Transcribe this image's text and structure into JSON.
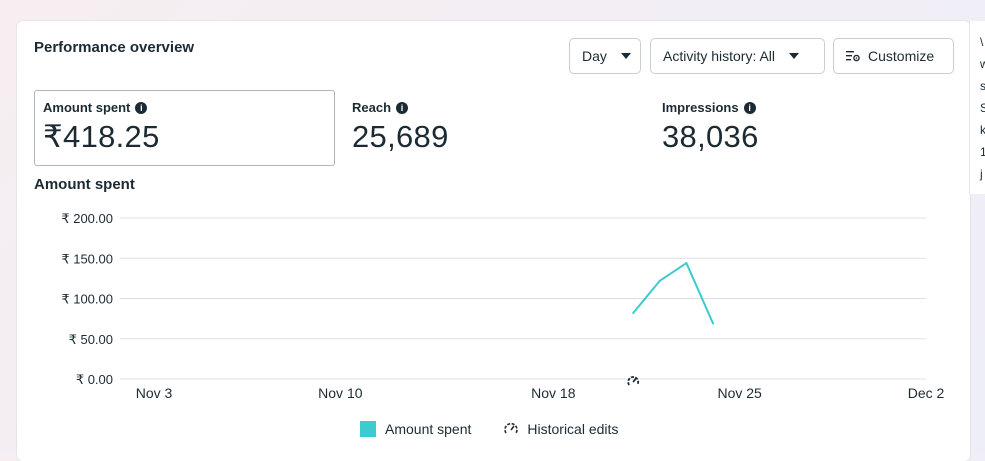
{
  "header": {
    "title": "Performance overview",
    "day_label": "Day",
    "activity_label": "Activity history: All",
    "customize_label": "Customize"
  },
  "metrics": [
    {
      "label": "Amount spent",
      "value": "₹418.25",
      "selected": true
    },
    {
      "label": "Reach",
      "value": "25,689",
      "selected": false
    },
    {
      "label": "Impressions",
      "value": "38,036",
      "selected": false
    }
  ],
  "side_panel": {
    "lines": [
      "\\",
      "w",
      "s",
      "S",
      "k",
      "1",
      "j"
    ]
  },
  "chart_data": {
    "type": "line",
    "title": "Amount spent",
    "y_ticks": [
      "₹ 200.00",
      "₹ 150.00",
      "₹ 100.00",
      "₹ 50.00",
      "₹ 0.00"
    ],
    "ylim": [
      0,
      200
    ],
    "x_ticks": [
      "Nov 3",
      "Nov 10",
      "Nov 18",
      "Nov 25",
      "Dec 2"
    ],
    "series": [
      {
        "name": "Amount spent",
        "color": "#3ccbcf",
        "points": [
          {
            "x": "Nov 21",
            "y": 82
          },
          {
            "x": "Nov 22",
            "y": 122
          },
          {
            "x": "Nov 23",
            "y": 144
          },
          {
            "x": "Nov 24",
            "y": 69
          }
        ]
      }
    ],
    "historical_edit_markers": [
      "Nov 21"
    ],
    "legend": [
      "Amount spent",
      "Historical edits"
    ]
  }
}
